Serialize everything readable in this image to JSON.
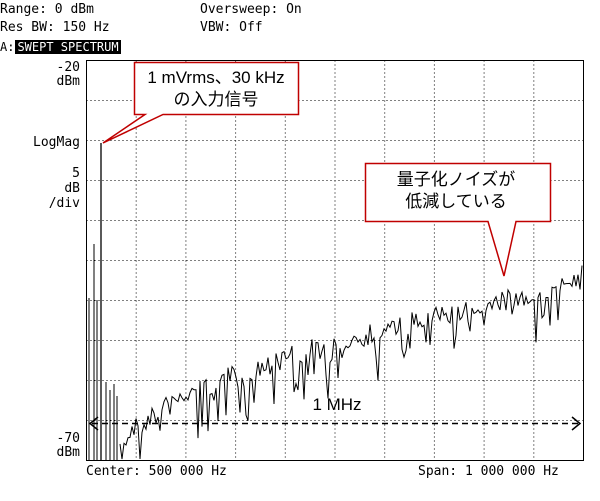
{
  "header": {
    "range": "Range: 0 dBm",
    "res_bw": "Res BW: 150 Hz",
    "oversweep": "Oversweep: On",
    "vbw": "VBW: Off"
  },
  "trace": {
    "id": "A:",
    "title": "SWEPT SPECTRUM"
  },
  "y_axis": {
    "top_value": "-20",
    "top_unit": "dBm",
    "scale_type": "LogMag",
    "scale_value": "5",
    "scale_unit": "dB",
    "scale_per": "/div",
    "bottom_value": "-70",
    "bottom_unit": "dBm"
  },
  "footer": {
    "center": "Center: 500 000 Hz",
    "span": "Span: 1 000 000 Hz"
  },
  "callouts": {
    "input_line1": "1 mVrms、30 kHz",
    "input_line2": "の入力信号",
    "noise_line1": "量子化ノイズが",
    "noise_line2": "低減している"
  },
  "span_arrow_label": "1 MHz",
  "colors": {
    "callout_border": "#c00000",
    "grid": "#000000",
    "trace": "#000000"
  }
}
